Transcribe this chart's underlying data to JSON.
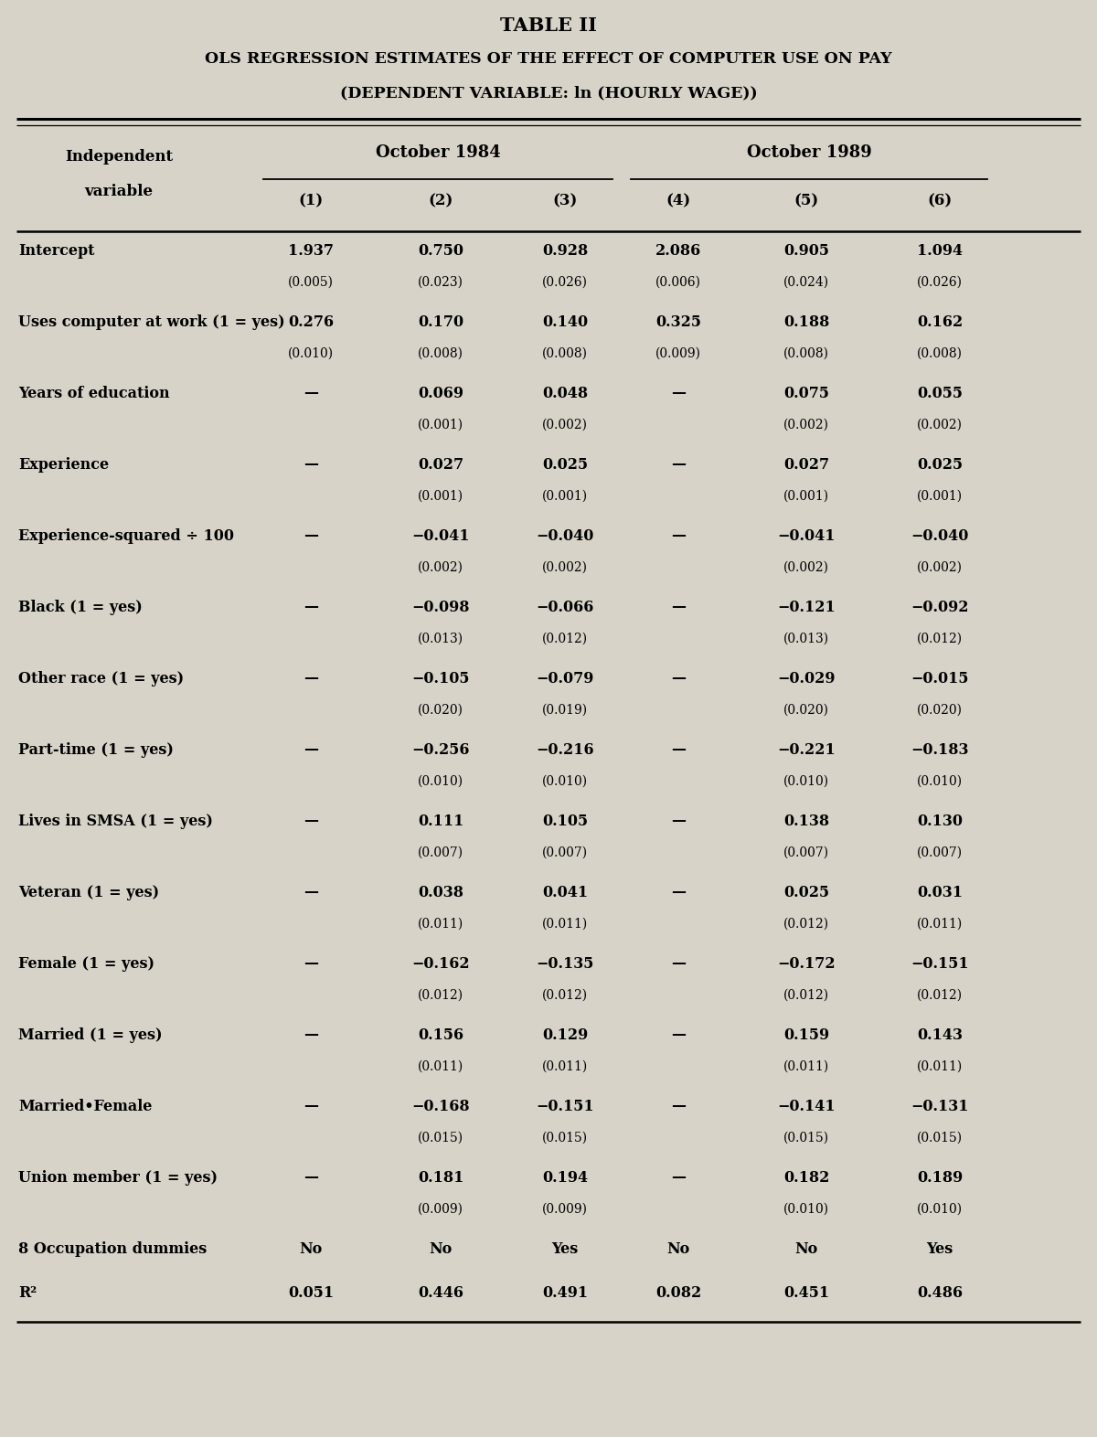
{
  "title1": "TABLE II",
  "title2": "OLS REGRESSION ESTIMATES OF THE EFFECT OF COMPUTER USE ON PAY",
  "title3": "(DEPENDENT VARIABLE: ln (HOURLY WAGE))",
  "col_headers": [
    "(1)",
    "(2)",
    "(3)",
    "(4)",
    "(5)",
    "(6)"
  ],
  "group_header_1": "October 1984",
  "group_header_2": "October 1989",
  "ind_var_line1": "Independent",
  "ind_var_line2": "variable",
  "rows": [
    {
      "label": "Intercept",
      "values": [
        "1.937",
        "0.750",
        "0.928",
        "2.086",
        "0.905",
        "1.094"
      ],
      "se": [
        "(0.005)",
        "(0.023)",
        "(0.026)",
        "(0.006)",
        "(0.024)",
        "(0.026)"
      ],
      "dash": [
        false,
        false,
        false,
        false,
        false,
        false
      ]
    },
    {
      "label": "Uses computer at work (1 = yes)",
      "values": [
        "0.276",
        "0.170",
        "0.140",
        "0.325",
        "0.188",
        "0.162"
      ],
      "se": [
        "(0.010)",
        "(0.008)",
        "(0.008)",
        "(0.009)",
        "(0.008)",
        "(0.008)"
      ],
      "dash": [
        false,
        false,
        false,
        false,
        false,
        false
      ]
    },
    {
      "label": "Years of education",
      "values": [
        "—",
        "0.069",
        "0.048",
        "—",
        "0.075",
        "0.055"
      ],
      "se": [
        "",
        "(0.001)",
        "(0.002)",
        "",
        "(0.002)",
        "(0.002)"
      ],
      "dash": [
        true,
        false,
        false,
        true,
        false,
        false
      ]
    },
    {
      "label": "Experience",
      "values": [
        "—",
        "0.027",
        "0.025",
        "—",
        "0.027",
        "0.025"
      ],
      "se": [
        "",
        "(0.001)",
        "(0.001)",
        "",
        "(0.001)",
        "(0.001)"
      ],
      "dash": [
        true,
        false,
        false,
        true,
        false,
        false
      ]
    },
    {
      "label": "Experience-squared ÷ 100",
      "values": [
        "—",
        "−0.041",
        "−0.040",
        "—",
        "−0.041",
        "−0.040"
      ],
      "se": [
        "",
        "(0.002)",
        "(0.002)",
        "",
        "(0.002)",
        "(0.002)"
      ],
      "dash": [
        true,
        false,
        false,
        true,
        false,
        false
      ]
    },
    {
      "label": "Black (1 = yes)",
      "values": [
        "—",
        "−0.098",
        "−0.066",
        "—",
        "−0.121",
        "−0.092"
      ],
      "se": [
        "",
        "(0.013)",
        "(0.012)",
        "",
        "(0.013)",
        "(0.012)"
      ],
      "dash": [
        true,
        false,
        false,
        true,
        false,
        false
      ]
    },
    {
      "label": "Other race (1 = yes)",
      "values": [
        "—",
        "−0.105",
        "−0.079",
        "—",
        "−0.029",
        "−0.015"
      ],
      "se": [
        "",
        "(0.020)",
        "(0.019)",
        "",
        "(0.020)",
        "(0.020)"
      ],
      "dash": [
        true,
        false,
        false,
        true,
        false,
        false
      ]
    },
    {
      "label": "Part-time (1 = yes)",
      "values": [
        "—",
        "−0.256",
        "−0.216",
        "—",
        "−0.221",
        "−0.183"
      ],
      "se": [
        "",
        "(0.010)",
        "(0.010)",
        "",
        "(0.010)",
        "(0.010)"
      ],
      "dash": [
        true,
        false,
        false,
        true,
        false,
        false
      ]
    },
    {
      "label": "Lives in SMSA (1 = yes)",
      "values": [
        "—",
        "0.111",
        "0.105",
        "—",
        "0.138",
        "0.130"
      ],
      "se": [
        "",
        "(0.007)",
        "(0.007)",
        "",
        "(0.007)",
        "(0.007)"
      ],
      "dash": [
        true,
        false,
        false,
        true,
        false,
        false
      ]
    },
    {
      "label": "Veteran (1 = yes)",
      "values": [
        "—",
        "0.038",
        "0.041",
        "—",
        "0.025",
        "0.031"
      ],
      "se": [
        "",
        "(0.011)",
        "(0.011)",
        "",
        "(0.012)",
        "(0.011)"
      ],
      "dash": [
        true,
        false,
        false,
        true,
        false,
        false
      ]
    },
    {
      "label": "Female (1 = yes)",
      "values": [
        "—",
        "−0.162",
        "−0.135",
        "—",
        "−0.172",
        "−0.151"
      ],
      "se": [
        "",
        "(0.012)",
        "(0.012)",
        "",
        "(0.012)",
        "(0.012)"
      ],
      "dash": [
        true,
        false,
        false,
        true,
        false,
        false
      ]
    },
    {
      "label": "Married (1 = yes)",
      "values": [
        "—",
        "0.156",
        "0.129",
        "—",
        "0.159",
        "0.143"
      ],
      "se": [
        "",
        "(0.011)",
        "(0.011)",
        "",
        "(0.011)",
        "(0.011)"
      ],
      "dash": [
        true,
        false,
        false,
        true,
        false,
        false
      ]
    },
    {
      "label": "Married•Female",
      "values": [
        "—",
        "−0.168",
        "−0.151",
        "—",
        "−0.141",
        "−0.131"
      ],
      "se": [
        "",
        "(0.015)",
        "(0.015)",
        "",
        "(0.015)",
        "(0.015)"
      ],
      "dash": [
        true,
        false,
        false,
        true,
        false,
        false
      ]
    },
    {
      "label": "Union member (1 = yes)",
      "values": [
        "—",
        "0.181",
        "0.194",
        "—",
        "0.182",
        "0.189"
      ],
      "se": [
        "",
        "(0.009)",
        "(0.009)",
        "",
        "(0.010)",
        "(0.010)"
      ],
      "dash": [
        true,
        false,
        false,
        true,
        false,
        false
      ]
    },
    {
      "label": "8 Occupation dummies",
      "values": [
        "No",
        "No",
        "Yes",
        "No",
        "No",
        "Yes"
      ],
      "se": [
        "",
        "",
        "",
        "",
        "",
        ""
      ],
      "is_bottom": true
    },
    {
      "label": "R²",
      "values": [
        "0.051",
        "0.446",
        "0.491",
        "0.082",
        "0.451",
        "0.486"
      ],
      "se": [
        "",
        "",
        "",
        "",
        "",
        ""
      ],
      "is_bottom": true
    }
  ],
  "bg_color": "#d8d3c8",
  "text_color": "#000000"
}
